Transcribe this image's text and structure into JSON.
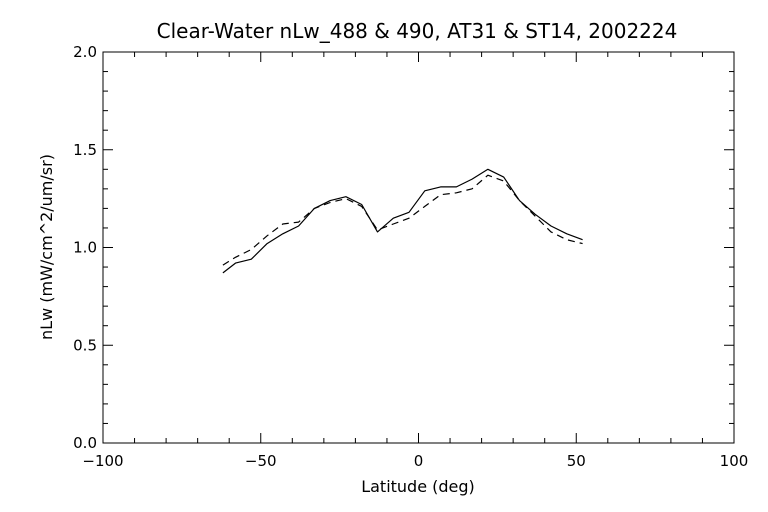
{
  "chart_data": {
    "type": "line",
    "title": "Clear-Water nLw_488 & 490, AT31 & ST14, 2002224",
    "xlabel": "Latitude (deg)",
    "ylabel": "nLw (mW/cm^2/um/sr)",
    "xlim": [
      -100,
      100
    ],
    "ylim": [
      0.0,
      2.0
    ],
    "xticks": [
      -100,
      -50,
      0,
      50,
      100
    ],
    "xtick_labels": [
      "−100",
      "−50",
      "0",
      "50",
      "100"
    ],
    "yticks": [
      0.0,
      0.5,
      1.0,
      1.5,
      2.0
    ],
    "ytick_labels": [
      "0.0",
      "0.5",
      "1.0",
      "1.5",
      "2.0"
    ],
    "grid": false,
    "colors": {
      "line": "#000000",
      "background": "#ffffff"
    },
    "series": [
      {
        "style": "solid",
        "x": [
          -62,
          -58,
          -53,
          -48,
          -43,
          -38,
          -33,
          -28,
          -23,
          -18,
          -13,
          -8,
          -3,
          2,
          7,
          12,
          17,
          22,
          27,
          32,
          37,
          42,
          47,
          52
        ],
        "y": [
          0.87,
          0.92,
          0.94,
          1.02,
          1.07,
          1.11,
          1.2,
          1.24,
          1.26,
          1.22,
          1.08,
          1.15,
          1.18,
          1.29,
          1.31,
          1.31,
          1.35,
          1.4,
          1.36,
          1.24,
          1.17,
          1.11,
          1.07,
          1.04
        ]
      },
      {
        "style": "dashed",
        "x": [
          -62,
          -58,
          -53,
          -48,
          -43,
          -38,
          -33,
          -28,
          -23,
          -18,
          -13,
          -8,
          -3,
          2,
          7,
          12,
          17,
          22,
          27,
          32,
          37,
          42,
          47,
          52
        ],
        "y": [
          0.91,
          0.95,
          0.99,
          1.06,
          1.12,
          1.13,
          1.2,
          1.23,
          1.25,
          1.21,
          1.09,
          1.12,
          1.15,
          1.21,
          1.27,
          1.28,
          1.3,
          1.37,
          1.34,
          1.24,
          1.16,
          1.08,
          1.04,
          1.02
        ]
      }
    ]
  }
}
